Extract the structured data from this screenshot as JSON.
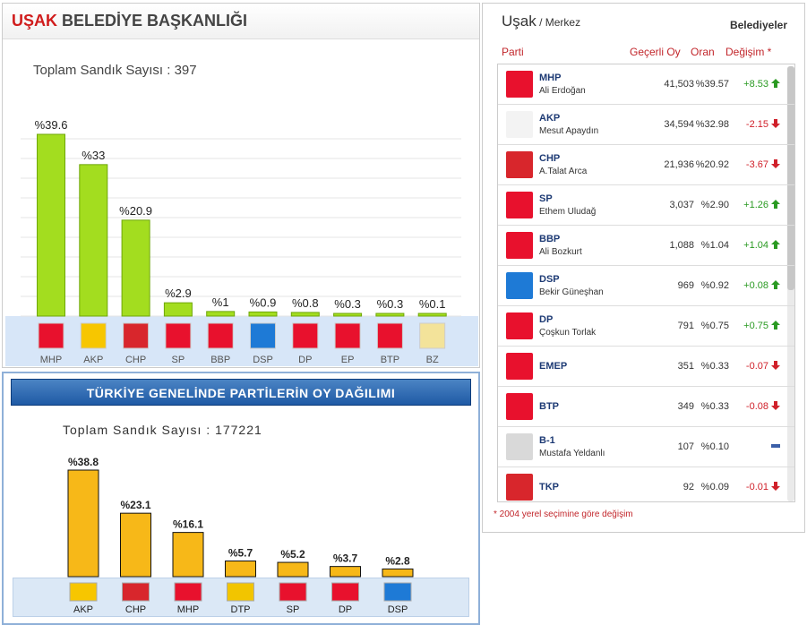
{
  "panel1": {
    "title_city": "UŞAK",
    "title_rest": "BELEDİYE BAŞKANLIĞI",
    "total": "Toplam Sandık Sayısı : 397"
  },
  "panel2": {
    "title": "TÜRKİYE GENELİNDE PARTİLERİN OY DAĞILIMI",
    "total": "Toplam Sandık Sayısı : 177221"
  },
  "chart_data": [
    {
      "type": "bar",
      "categories": [
        "MHP",
        "AKP",
        "CHP",
        "SP",
        "BBP",
        "DSP",
        "DP",
        "EP",
        "BTP",
        "BZ"
      ],
      "values": [
        39.6,
        33,
        20.9,
        2.9,
        1,
        0.9,
        0.8,
        0.3,
        0.3,
        0.1
      ],
      "labels": [
        "%39.6",
        "%33",
        "%20.9",
        "%2.9",
        "%1",
        "%0.9",
        "%0.8",
        "%0.3",
        "%0.3",
        "%0.1"
      ],
      "colors": [
        "#e8112d",
        "#f7c600",
        "#d8262c",
        "#e8112d",
        "#e8112d",
        "#1e7ad6",
        "#e8112d",
        "#e8112d",
        "#e8112d",
        "#f3e39a"
      ],
      "bar_color": "#a3dd1f",
      "ylim": [
        0,
        40
      ],
      "grid": true
    },
    {
      "type": "bar",
      "categories": [
        "AKP",
        "CHP",
        "MHP",
        "DTP",
        "SP",
        "DP",
        "DSP"
      ],
      "values": [
        38.8,
        23.1,
        16.1,
        5.7,
        5.2,
        3.7,
        2.8
      ],
      "labels": [
        "%38.8",
        "%23.1",
        "%16.1",
        "%5.7",
        "%5.2",
        "%3.7",
        "%2.8"
      ],
      "colors": [
        "#f7c600",
        "#d8262c",
        "#e8112d",
        "#f2c500",
        "#e8112d",
        "#e8112d",
        "#1e7ad6"
      ],
      "bar_color": "#f7b818",
      "ylim": [
        0,
        40
      ],
      "grid": false
    }
  ],
  "side": {
    "city": "Uşak",
    "sub": " / Merkez",
    "belediyeler": "Belediyeler",
    "col_parti": "Parti",
    "col_oy": "Geçerli Oy",
    "col_oran": "Oran",
    "col_degisim": "Değişim *",
    "note": "* 2004 yerel seçimine göre değişim",
    "rows": [
      {
        "party": "MHP",
        "cand": "Ali Erdoğan",
        "votes": "41,503",
        "ratio": "%39.57",
        "change": "+8.53",
        "dir": "up",
        "color": "#e8112d",
        "mark": "MHP"
      },
      {
        "party": "AKP",
        "cand": "Mesut Apaydın",
        "votes": "34,594",
        "ratio": "%32.98",
        "change": "-2.15",
        "dir": "down",
        "color": "#f3f3f3",
        "mark": "AK"
      },
      {
        "party": "CHP",
        "cand": "A.Talat Arca",
        "votes": "21,936",
        "ratio": "%20.92",
        "change": "-3.67",
        "dir": "down",
        "color": "#d8262c",
        "mark": "CHP"
      },
      {
        "party": "SP",
        "cand": "Ethem Uludağ",
        "votes": "3,037",
        "ratio": "%2.90",
        "change": "+1.26",
        "dir": "up",
        "color": "#e8112d",
        "mark": "SP"
      },
      {
        "party": "BBP",
        "cand": "Ali Bozkurt",
        "votes": "1,088",
        "ratio": "%1.04",
        "change": "+1.04",
        "dir": "up",
        "color": "#e8112d",
        "mark": "BBP"
      },
      {
        "party": "DSP",
        "cand": "Bekir Güneşhan",
        "votes": "969",
        "ratio": "%0.92",
        "change": "+0.08",
        "dir": "up",
        "color": "#1e7ad6",
        "mark": "DSP"
      },
      {
        "party": "DP",
        "cand": "Çoşkun Torlak",
        "votes": "791",
        "ratio": "%0.75",
        "change": "+0.75",
        "dir": "up",
        "color": "#e8112d",
        "mark": "DP"
      },
      {
        "party": "EMEP",
        "cand": "",
        "votes": "351",
        "ratio": "%0.33",
        "change": "-0.07",
        "dir": "down",
        "color": "#e8112d",
        "mark": "EMEP"
      },
      {
        "party": "BTP",
        "cand": "",
        "votes": "349",
        "ratio": "%0.33",
        "change": "-0.08",
        "dir": "down",
        "color": "#e8112d",
        "mark": "BTP"
      },
      {
        "party": "B-1",
        "cand": "Mustafa Yeldanlı",
        "votes": "107",
        "ratio": "%0.10",
        "change": "",
        "dir": "none",
        "color": "#d9d9d9",
        "mark": ""
      },
      {
        "party": "TKP",
        "cand": "",
        "votes": "92",
        "ratio": "%0.09",
        "change": "-0.01",
        "dir": "down",
        "color": "#d8262c",
        "mark": "TKP"
      }
    ]
  }
}
